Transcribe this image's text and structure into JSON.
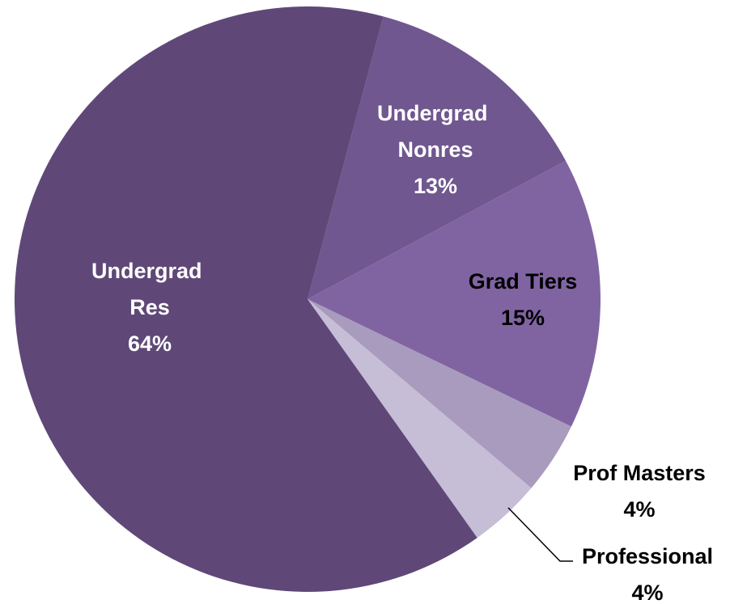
{
  "chart_data": {
    "type": "pie",
    "categories": [
      "Undergrad Nonres",
      "Grad Tiers",
      "Prof Masters",
      "Professional",
      "Undergrad Res"
    ],
    "values": [
      13,
      15,
      4,
      4,
      64
    ],
    "value_labels": [
      "13%",
      "15%",
      "4%",
      "4%",
      "64%"
    ],
    "colors": [
      "#70578f",
      "#8064a2",
      "#a99bbd",
      "#c6bdd6",
      "#5f4878"
    ]
  }
}
